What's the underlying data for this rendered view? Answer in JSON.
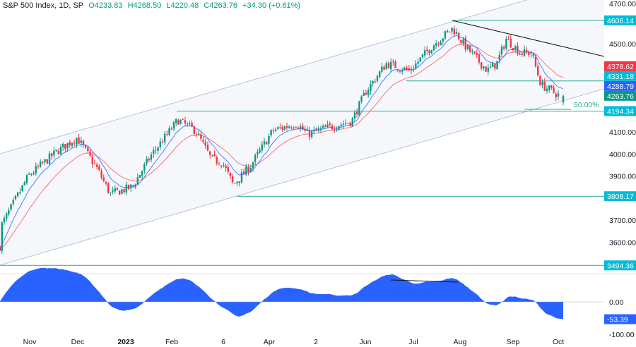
{
  "header": {
    "symbol": "S&P 500 Index, 1D, SP",
    "open": "O4233.83",
    "high": "H4268.50",
    "low": "L4220.48",
    "close": "C4263.76",
    "change": "+34.30 (+0.81%)"
  },
  "colors": {
    "up": "#089981",
    "down": "#f23645",
    "level_line": "#22ab94",
    "level_tag": "#00bcd4",
    "channel": "#b2c5dd",
    "channel_fill": "#f5f7fb",
    "fast_ma": "#2962ff",
    "slow_ma": "#f7525f",
    "oscillator": "#2962ff"
  },
  "chart_data": {
    "type": "candlestick",
    "price_axis": {
      "range": [
        3400,
        4700
      ],
      "ticks": [
        "4700.00",
        "4500.00",
        "4100.00",
        "4000.00",
        "3900.00",
        "3700.00",
        "3600.00"
      ]
    },
    "time_axis": {
      "ticks": [
        "Nov",
        "Dec",
        "2023",
        "Feb",
        "6",
        "Apr",
        "2",
        "Jun",
        "Jul",
        "Aug",
        "Sep",
        "Oct"
      ]
    },
    "approx_close_path": [
      {
        "date": "2022-10-13",
        "close": 3580
      },
      {
        "date": "2022-10-14",
        "close": 3674
      },
      {
        "date": "2022-10-31",
        "close": 3898
      },
      {
        "date": "2022-11-18",
        "close": 4010
      },
      {
        "date": "2022-12-01",
        "close": 4074
      },
      {
        "date": "2022-12-14",
        "close": 3930
      },
      {
        "date": "2022-12-22",
        "close": 3818
      },
      {
        "date": "2023-01-05",
        "close": 3850
      },
      {
        "date": "2023-01-17",
        "close": 3994
      },
      {
        "date": "2023-02-03",
        "close": 4154
      },
      {
        "date": "2023-02-14",
        "close": 4106
      },
      {
        "date": "2023-02-24",
        "close": 3978
      },
      {
        "date": "2023-03-03",
        "close": 3962
      },
      {
        "date": "2023-03-10",
        "close": 3860
      },
      {
        "date": "2023-03-21",
        "close": 3946
      },
      {
        "date": "2023-04-04",
        "close": 4106
      },
      {
        "date": "2023-04-19",
        "close": 4138
      },
      {
        "date": "2023-04-26",
        "close": 4090
      },
      {
        "date": "2023-05-10",
        "close": 4122
      },
      {
        "date": "2023-05-24",
        "close": 4148
      },
      {
        "date": "2023-06-02",
        "close": 4282
      },
      {
        "date": "2023-06-15",
        "close": 4410
      },
      {
        "date": "2023-06-30",
        "close": 4378
      },
      {
        "date": "2023-07-14",
        "close": 4490
      },
      {
        "date": "2023-07-27",
        "close": 4570
      },
      {
        "date": "2023-08-04",
        "close": 4490
      },
      {
        "date": "2023-08-18",
        "close": 4378
      },
      {
        "date": "2023-08-24",
        "close": 4410
      },
      {
        "date": "2023-08-30",
        "close": 4522
      },
      {
        "date": "2023-09-08",
        "close": 4458
      },
      {
        "date": "2023-09-15",
        "close": 4458
      },
      {
        "date": "2023-09-21",
        "close": 4314
      },
      {
        "date": "2023-10-03",
        "close": 4263.76
      }
    ],
    "last_candle": {
      "open": 4233.83,
      "high": 4268.5,
      "low": 4220.48,
      "close": 4263.76
    },
    "levels": [
      {
        "label": "4606.14",
        "value": 4606.14
      },
      {
        "label": "4331.18",
        "value": 4331.18
      },
      {
        "label": "4194.34",
        "value": 4194.34
      },
      {
        "label": "3808.17",
        "value": 3808.17
      },
      {
        "label": "3494.36",
        "value": 3494.36
      }
    ],
    "price_tags": [
      {
        "label": "4378.62",
        "value": 4378.62,
        "color": "#f23645"
      },
      {
        "label": "4288.79",
        "value": 4288.79,
        "color": "#2962ff"
      },
      {
        "label": "4263.76",
        "value": 4263.76,
        "color": "#089981"
      }
    ],
    "fib_label": "50.00%",
    "oscillator": {
      "ticks": [
        "0.00",
        "-100.00"
      ],
      "last_label": "-53.39",
      "last": -53.39
    }
  }
}
